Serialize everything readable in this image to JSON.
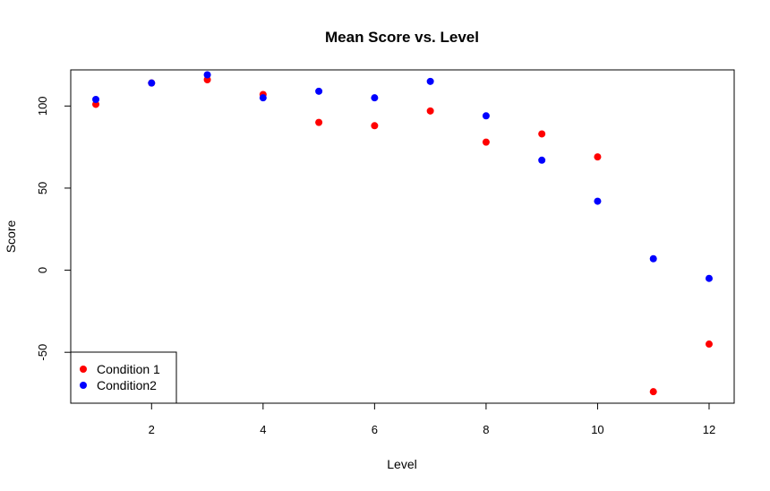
{
  "chart_data": {
    "type": "scatter",
    "title": "Mean Score vs. Level",
    "xlabel": "Level",
    "ylabel": "Score",
    "xlim": [
      0.55,
      12.45
    ],
    "ylim": [
      -81,
      122
    ],
    "xticks": [
      2,
      4,
      6,
      8,
      10,
      12
    ],
    "yticks": [
      -50,
      0,
      50,
      100
    ],
    "grid": false,
    "legend_position": "bottom-left",
    "series": [
      {
        "name": "Condition 1",
        "color": "#ff0000",
        "x": [
          1,
          2,
          3,
          4,
          5,
          6,
          7,
          8,
          9,
          10,
          11,
          12
        ],
        "y": [
          101,
          114,
          116,
          107,
          90,
          88,
          97,
          78,
          83,
          69,
          -74,
          -45
        ]
      },
      {
        "name": "Condition2",
        "color": "#0000ff",
        "x": [
          1,
          2,
          3,
          4,
          5,
          6,
          7,
          8,
          9,
          10,
          11,
          12
        ],
        "y": [
          104,
          114,
          119,
          105,
          109,
          105,
          115,
          94,
          67,
          42,
          7,
          -5
        ]
      }
    ]
  }
}
